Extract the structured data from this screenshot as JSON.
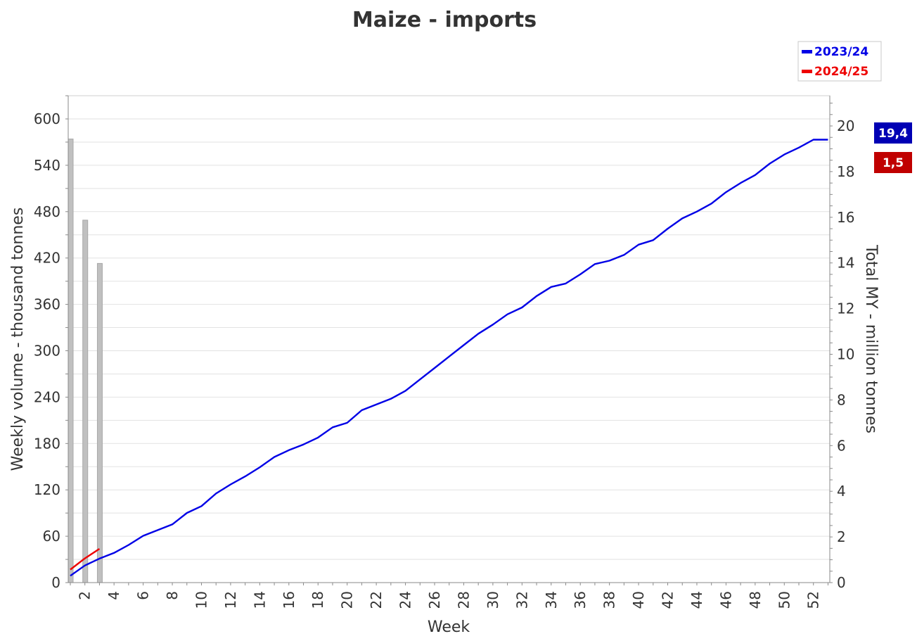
{
  "chart_data": {
    "type": "line",
    "title": "Maize - imports",
    "xlabel": "Week",
    "ylabel_left": "Weekly volume - thousand tonnes",
    "ylabel_right": "Total MY - million tonnes",
    "x_range": [
      1,
      53
    ],
    "x_ticks": [
      2,
      4,
      6,
      8,
      10,
      12,
      14,
      16,
      18,
      20,
      22,
      24,
      26,
      28,
      30,
      32,
      34,
      36,
      38,
      40,
      42,
      44,
      46,
      48,
      50,
      52
    ],
    "y_left_range": [
      0,
      600
    ],
    "y_left_ticks": [
      0,
      60,
      120,
      180,
      240,
      300,
      360,
      420,
      480,
      540,
      600
    ],
    "y_right_range": [
      0,
      20
    ],
    "y_right_ticks": [
      0,
      2,
      4,
      6,
      8,
      10,
      12,
      14,
      16,
      18,
      20
    ],
    "grid": true,
    "legend_position": "top-right",
    "bars": {
      "name": "2024/25 weekly",
      "color": "#c0c0c0",
      "x": [
        1,
        2,
        3
      ],
      "values": [
        574,
        469,
        413
      ]
    },
    "series": [
      {
        "name": "2023/24",
        "color": "#0000e6",
        "axis": "right",
        "x": [
          1,
          2,
          3,
          4,
          5,
          6,
          7,
          8,
          9,
          10,
          11,
          12,
          13,
          14,
          15,
          16,
          17,
          18,
          19,
          20,
          21,
          22,
          23,
          24,
          25,
          26,
          27,
          28,
          29,
          30,
          31,
          32,
          33,
          34,
          35,
          36,
          37,
          38,
          39,
          40,
          41,
          42,
          43,
          44,
          45,
          46,
          47,
          48,
          49,
          50,
          51,
          52,
          53
        ],
        "values": [
          0.3,
          0.75,
          1.05,
          1.3,
          1.65,
          2.05,
          2.3,
          2.55,
          3.05,
          3.35,
          3.9,
          4.3,
          4.65,
          5.05,
          5.5,
          5.8,
          6.05,
          6.35,
          6.8,
          7.0,
          7.55,
          7.8,
          8.05,
          8.4,
          8.9,
          9.4,
          9.9,
          10.4,
          10.9,
          11.3,
          11.75,
          12.05,
          12.55,
          12.95,
          13.1,
          13.5,
          13.95,
          14.1,
          14.35,
          14.8,
          15.0,
          15.5,
          15.95,
          16.25,
          16.6,
          17.1,
          17.5,
          17.85,
          18.35,
          18.75,
          19.05,
          19.4,
          19.4
        ],
        "final_value_label": "19,4"
      },
      {
        "name": "2024/25",
        "color": "#ee0000",
        "axis": "right",
        "x": [
          1,
          2,
          3
        ],
        "values": [
          0.57,
          1.06,
          1.48
        ],
        "final_value_label": "1,5"
      }
    ]
  }
}
